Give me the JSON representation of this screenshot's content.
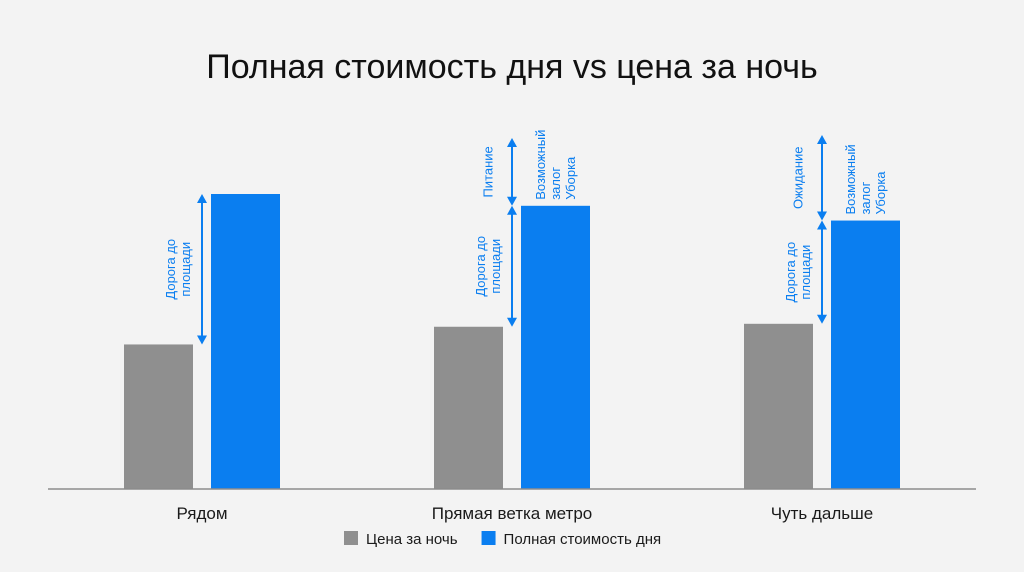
{
  "chart_data": {
    "type": "bar",
    "title": "Полная стоимость дня vs цена за ночь",
    "categories": [
      "Рядом",
      "Прямая ветка метро",
      "Чуть дальше"
    ],
    "series": [
      {
        "name": "Цена за ночь",
        "color": "#8f8f8f",
        "values": [
          49,
          55,
          56
        ]
      },
      {
        "name": "Полная стоимость дня",
        "color": "#0a7ef0",
        "values": [
          100,
          96,
          91
        ]
      }
    ],
    "ylim": [
      0,
      100
    ],
    "axis": {
      "x_visible": true,
      "y_visible": false,
      "grid": false
    },
    "legend": {
      "position": "bottom-center"
    },
    "annotations": [
      {
        "category": 0,
        "type": "arrow",
        "from": 49,
        "to": 100,
        "label": [
          "Дорога до",
          "площади"
        ]
      },
      {
        "category": 1,
        "type": "arrow",
        "from": 55,
        "to": 96,
        "label": [
          "Дорога до",
          "площади"
        ]
      },
      {
        "category": 1,
        "type": "arrow",
        "from": 96,
        "to": 119,
        "label": [
          "Питание"
        ]
      },
      {
        "category": 1,
        "type": "text",
        "at": 96,
        "label": [
          "Возможный",
          "залог",
          "Уборка"
        ]
      },
      {
        "category": 2,
        "type": "arrow",
        "from": 56,
        "to": 91,
        "label": [
          "Дорога до",
          "площади"
        ]
      },
      {
        "category": 2,
        "type": "arrow",
        "from": 91,
        "to": 120,
        "label": [
          "Ожидание"
        ]
      },
      {
        "category": 2,
        "type": "text",
        "at": 91,
        "label": [
          "Возможный",
          "залог",
          "Уборка"
        ]
      }
    ],
    "accent": "#0a7ef0"
  }
}
